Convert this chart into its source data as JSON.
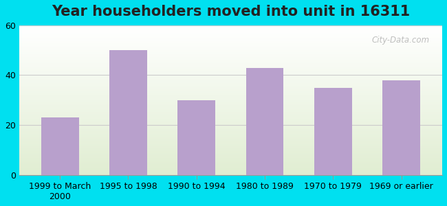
{
  "title": "Year householders moved into unit in 16311",
  "categories": [
    "1999 to March\n2000",
    "1995 to 1998",
    "1990 to 1994",
    "1980 to 1989",
    "1970 to 1979",
    "1969 or earlier"
  ],
  "values": [
    23,
    50,
    30,
    43,
    35,
    38
  ],
  "bar_color": "#b8a0cc",
  "background_outer": "#00e0f0",
  "background_inner_top": "#ffffff",
  "background_inner_bottom": "#d4edda",
  "ylim": [
    0,
    60
  ],
  "yticks": [
    0,
    20,
    40,
    60
  ],
  "grid_color": "#cccccc",
  "title_fontsize": 15,
  "tick_fontsize": 9,
  "watermark": "City-Data.com"
}
